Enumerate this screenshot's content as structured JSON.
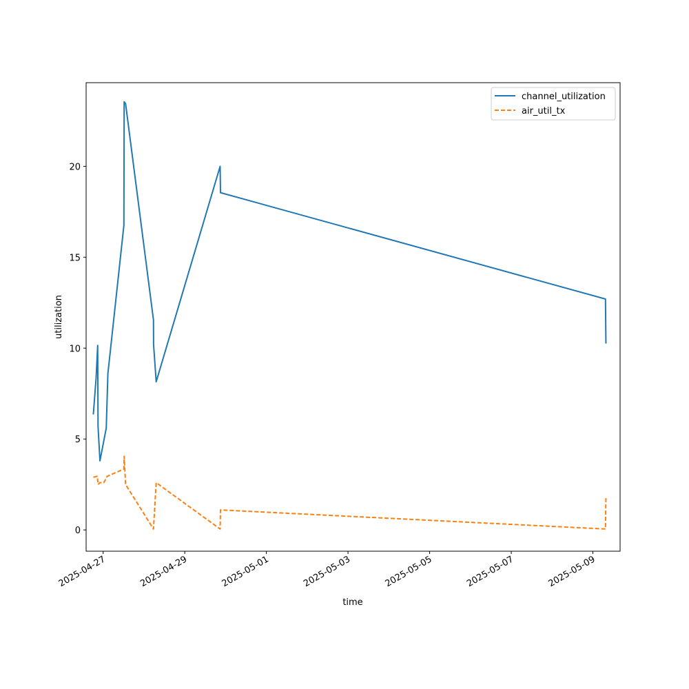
{
  "chart_data": {
    "type": "line",
    "xlabel": "time",
    "ylabel": "utilization",
    "xlim": [
      "2025-04-26T14:00",
      "2025-05-09T16:00"
    ],
    "ylim": [
      -1.17,
      24.6
    ],
    "x_ticks": [
      "2025-04-27",
      "2025-04-29",
      "2025-05-01",
      "2025-05-03",
      "2025-05-05",
      "2025-05-07",
      "2025-05-09"
    ],
    "y_ticks": [
      0,
      5,
      10,
      15,
      20
    ],
    "grid": false,
    "legend_position": "top-right",
    "series": [
      {
        "name": "channel_utilization",
        "color": "#1f77b4",
        "style": "solid",
        "points": [
          [
            "2025-04-26T18:14",
            6.35
          ],
          [
            "2025-04-26T19:52",
            8.35
          ],
          [
            "2025-04-26T20:48",
            10.15
          ],
          [
            "2025-04-26T21:00",
            5.7
          ],
          [
            "2025-04-26T22:08",
            3.8
          ],
          [
            "2025-04-27T01:50",
            5.6
          ],
          [
            "2025-04-27T02:48",
            8.6
          ],
          [
            "2025-04-27T12:12",
            16.75
          ],
          [
            "2025-04-27T12:22",
            23.55
          ],
          [
            "2025-04-27T13:12",
            23.45
          ],
          [
            "2025-04-28T05:36",
            11.55
          ],
          [
            "2025-04-28T05:40",
            10.2
          ],
          [
            "2025-04-28T07:12",
            8.15
          ],
          [
            "2025-04-29T20:48",
            20.0
          ],
          [
            "2025-04-29T21:00",
            18.55
          ],
          [
            "2025-05-09T07:24",
            12.7
          ],
          [
            "2025-05-09T07:40",
            10.25
          ]
        ]
      },
      {
        "name": "air_util_tx",
        "color": "#ff7f0e",
        "style": "dashed",
        "points": [
          [
            "2025-04-26T18:14",
            2.9
          ],
          [
            "2025-04-26T20:36",
            2.95
          ],
          [
            "2025-04-26T21:00",
            2.5
          ],
          [
            "2025-04-26T22:08",
            2.6
          ],
          [
            "2025-04-27T00:24",
            2.6
          ],
          [
            "2025-04-27T02:24",
            2.95
          ],
          [
            "2025-04-27T12:12",
            3.35
          ],
          [
            "2025-04-27T12:22",
            4.05
          ],
          [
            "2025-04-27T13:12",
            2.5
          ],
          [
            "2025-04-28T05:36",
            0.05
          ],
          [
            "2025-04-28T07:12",
            2.6
          ],
          [
            "2025-04-29T20:48",
            0.05
          ],
          [
            "2025-04-29T21:00",
            1.1
          ],
          [
            "2025-05-09T07:24",
            0.05
          ],
          [
            "2025-05-09T07:40",
            1.8
          ]
        ]
      }
    ]
  }
}
